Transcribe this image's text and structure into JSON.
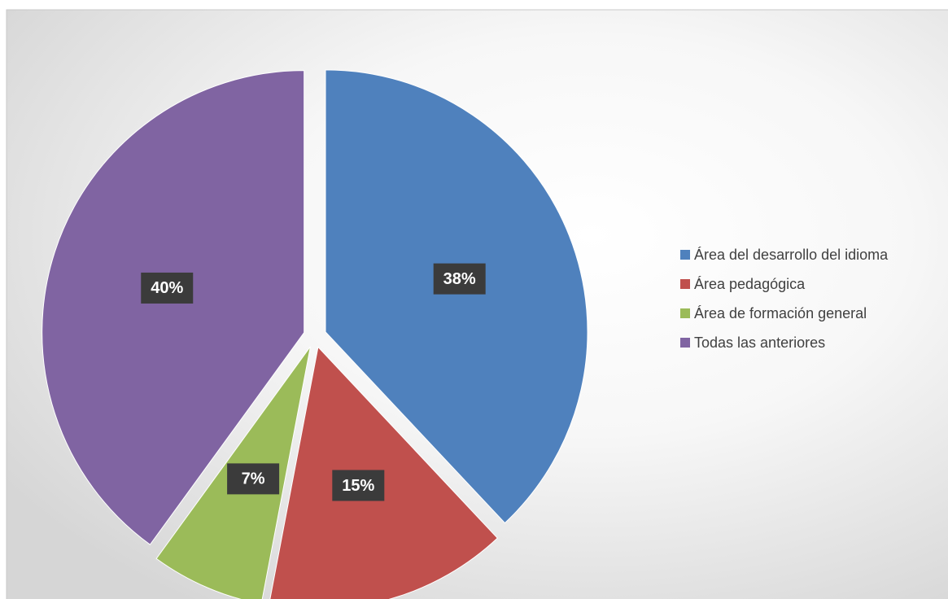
{
  "chart_data": {
    "type": "pie",
    "categories": [
      "Área del desarrollo del idioma",
      "Área pedagógica",
      "Área de formación general",
      "Todas las anteriores"
    ],
    "values": [
      38,
      15,
      7,
      40
    ],
    "value_labels": [
      "38%",
      "15%",
      "7%",
      "40%"
    ],
    "colors": [
      "#4f81bd",
      "#c0504d",
      "#9bbb59",
      "#8064a2"
    ],
    "legend": "right"
  }
}
